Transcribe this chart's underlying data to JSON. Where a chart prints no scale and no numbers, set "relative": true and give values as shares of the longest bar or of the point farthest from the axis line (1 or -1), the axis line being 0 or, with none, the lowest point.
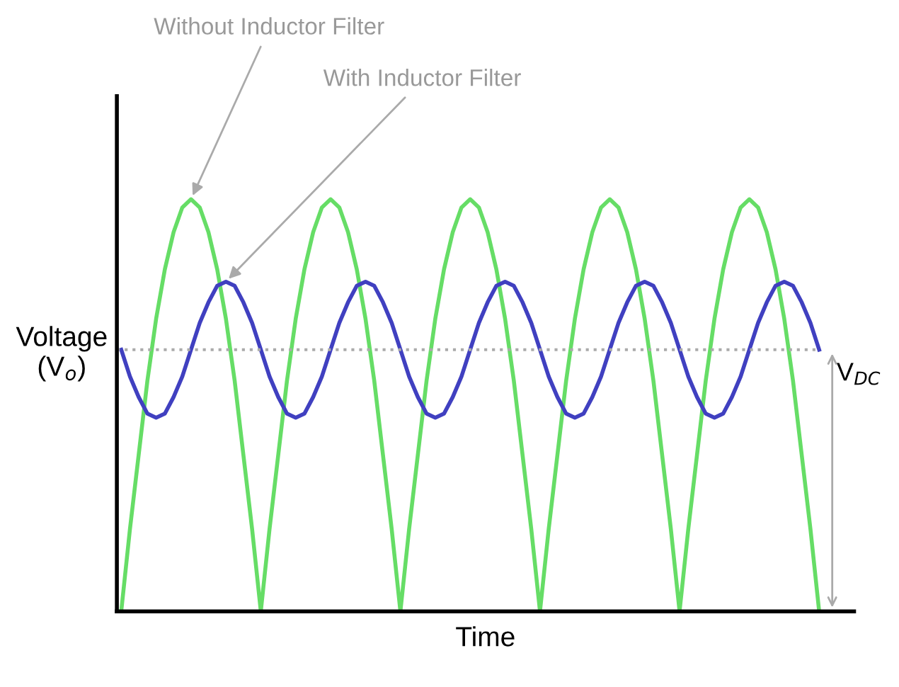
{
  "chart_data": {
    "type": "line",
    "relative": true,
    "xlabel": "Time",
    "ylabel": "Voltage\n(V$_{o}$)",
    "categories": [
      null,
      null,
      null,
      null,
      null,
      null,
      null,
      null,
      null,
      null,
      null,
      null,
      null,
      null,
      null,
      null,
      null,
      null,
      null,
      null,
      null,
      null,
      null,
      null,
      null,
      null,
      null,
      null,
      null,
      null,
      null,
      null,
      null,
      null,
      null,
      null,
      null,
      null,
      null,
      null,
      null,
      null,
      null,
      null,
      null,
      null,
      null,
      null,
      null,
      null,
      null,
      null,
      null,
      null,
      null,
      null,
      null,
      null,
      null,
      null,
      null,
      null,
      null,
      null,
      null,
      null,
      null,
      null,
      null,
      null,
      null,
      null,
      null,
      null,
      null,
      null,
      null,
      null,
      null,
      null,
      null
    ],
    "series": [
      {
        "color": "#66dd66",
        "values": [
          0,
          0.2,
          0.38,
          0.56,
          0.71,
          0.83,
          0.92,
          0.98,
          1,
          0.98,
          0.92,
          0.83,
          0.71,
          0.56,
          0.38,
          0.2,
          0,
          0.2,
          0.38,
          0.56,
          0.71,
          0.83,
          0.92,
          0.98,
          1,
          0.98,
          0.92,
          0.83,
          0.71,
          0.56,
          0.38,
          0.2,
          0,
          0.2,
          0.38,
          0.56,
          0.71,
          0.83,
          0.92,
          0.98,
          1,
          0.98,
          0.92,
          0.83,
          0.71,
          0.56,
          0.38,
          0.2,
          0,
          0.2,
          0.38,
          0.56,
          0.71,
          0.83,
          0.92,
          0.98,
          1,
          0.98,
          0.92,
          0.83,
          0.71,
          0.56,
          0.38,
          0.2,
          0,
          0.2,
          0.38,
          0.56,
          0.71,
          0.83,
          0.92,
          0.98,
          1,
          0.98,
          0.92,
          0.83,
          0.71,
          0.56,
          0.38,
          0.2,
          0
        ]
      },
      {
        "color": "#4040c0",
        "values": [
          0.635,
          0.57,
          0.52,
          0.48,
          0.47,
          0.48,
          0.52,
          0.57,
          0.635,
          0.7,
          0.75,
          0.79,
          0.8,
          0.79,
          0.75,
          0.7,
          0.635,
          0.57,
          0.52,
          0.48,
          0.47,
          0.48,
          0.52,
          0.57,
          0.635,
          0.7,
          0.75,
          0.79,
          0.8,
          0.79,
          0.75,
          0.7,
          0.635,
          0.57,
          0.52,
          0.48,
          0.47,
          0.48,
          0.52,
          0.57,
          0.635,
          0.7,
          0.75,
          0.79,
          0.8,
          0.79,
          0.75,
          0.7,
          0.635,
          0.57,
          0.52,
          0.48,
          0.47,
          0.48,
          0.52,
          0.57,
          0.635,
          0.7,
          0.75,
          0.79,
          0.8,
          0.79,
          0.75,
          0.7,
          0.635,
          0.57,
          0.52,
          0.48,
          0.47,
          0.48,
          0.52,
          0.57,
          0.635,
          0.7,
          0.75,
          0.79,
          0.8,
          0.79,
          0.75,
          0.7,
          0.635
        ]
      }
    ],
    "ref_lines": [
      {
        "axis": "y",
        "value": 0.635,
        "label": "V$_{DC}$",
        "color": "#aaaaaa",
        "line_style": "dotted"
      }
    ],
    "annotations": [
      "Without Inductor Filter",
      "With Inductor Filter"
    ]
  }
}
